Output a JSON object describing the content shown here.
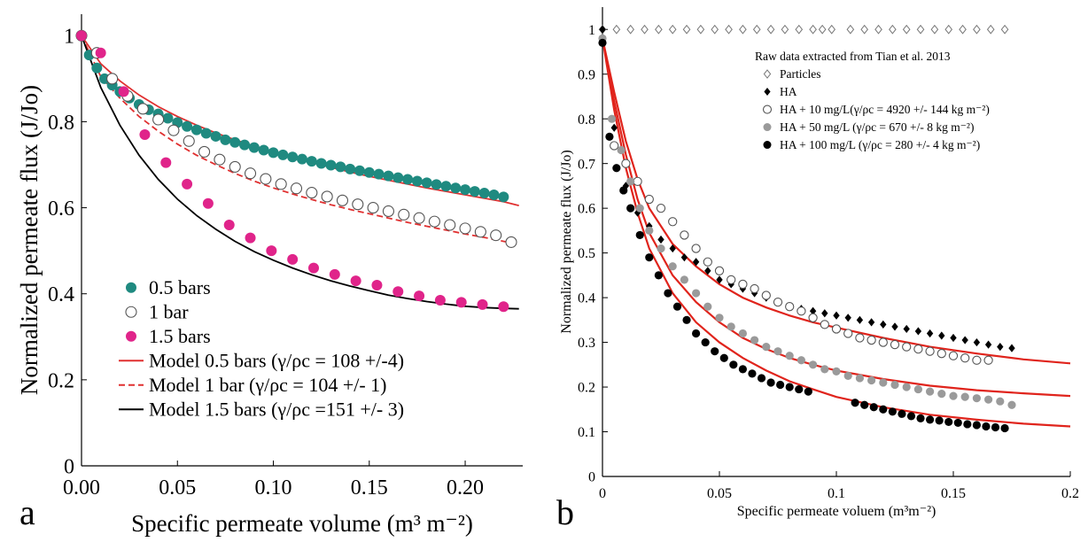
{
  "panel_a_label": "a",
  "panel_b_label": "b",
  "chart_data": [
    {
      "type": "scatter",
      "panel": "a",
      "title": "",
      "xlabel": "Specific permeate volume (m³ m⁻²)",
      "ylabel": "Normalized permeate flux (J/Jo)",
      "xlim": [
        0,
        0.23
      ],
      "ylim": [
        0,
        1.05
      ],
      "xticks": [
        "0.00",
        "0.05",
        "0.10",
        "0.15",
        "0.20"
      ],
      "yticks": [
        "0",
        "0.2",
        "0.4",
        "0.6",
        "0.8",
        "1"
      ],
      "grid": false,
      "legend_position": "bottom-left",
      "series": [
        {
          "name": "0.5 bars",
          "kind": "points",
          "marker": "filled-circle",
          "color": "#1f8a80",
          "x": [
            0.0,
            0.004,
            0.008,
            0.012,
            0.016,
            0.02,
            0.025,
            0.03,
            0.035,
            0.04,
            0.045,
            0.05,
            0.055,
            0.06,
            0.065,
            0.07,
            0.075,
            0.08,
            0.085,
            0.09,
            0.095,
            0.1,
            0.105,
            0.11,
            0.115,
            0.12,
            0.125,
            0.13,
            0.135,
            0.14,
            0.145,
            0.15,
            0.155,
            0.16,
            0.165,
            0.17,
            0.175,
            0.18,
            0.185,
            0.19,
            0.195,
            0.2,
            0.205,
            0.21,
            0.215,
            0.22
          ],
          "y": [
            1.0,
            0.955,
            0.925,
            0.9,
            0.885,
            0.87,
            0.855,
            0.84,
            0.828,
            0.818,
            0.808,
            0.798,
            0.789,
            0.781,
            0.773,
            0.766,
            0.758,
            0.752,
            0.746,
            0.74,
            0.734,
            0.728,
            0.723,
            0.718,
            0.713,
            0.708,
            0.703,
            0.699,
            0.695,
            0.69,
            0.686,
            0.682,
            0.678,
            0.674,
            0.67,
            0.666,
            0.662,
            0.658,
            0.654,
            0.65,
            0.646,
            0.642,
            0.638,
            0.634,
            0.63,
            0.625
          ]
        },
        {
          "name": "1 bar",
          "kind": "points",
          "marker": "open-circle",
          "color": "#555555",
          "x": [
            0.0,
            0.008,
            0.016,
            0.024,
            0.032,
            0.04,
            0.048,
            0.056,
            0.064,
            0.072,
            0.08,
            0.088,
            0.096,
            0.104,
            0.112,
            0.12,
            0.128,
            0.136,
            0.144,
            0.152,
            0.16,
            0.168,
            0.176,
            0.184,
            0.192,
            0.2,
            0.208,
            0.216,
            0.224
          ],
          "y": [
            1.0,
            0.96,
            0.9,
            0.86,
            0.83,
            0.805,
            0.78,
            0.755,
            0.73,
            0.712,
            0.695,
            0.68,
            0.667,
            0.655,
            0.645,
            0.635,
            0.626,
            0.617,
            0.608,
            0.6,
            0.592,
            0.584,
            0.576,
            0.568,
            0.56,
            0.552,
            0.544,
            0.536,
            0.52
          ]
        },
        {
          "name": "1.5 bars",
          "kind": "points",
          "marker": "filled-circle",
          "color": "#e0248a",
          "x": [
            0.0,
            0.01,
            0.022,
            0.033,
            0.044,
            0.055,
            0.066,
            0.077,
            0.088,
            0.099,
            0.11,
            0.121,
            0.132,
            0.143,
            0.154,
            0.165,
            0.176,
            0.187,
            0.198,
            0.209,
            0.22
          ],
          "y": [
            1.0,
            0.96,
            0.87,
            0.77,
            0.705,
            0.655,
            0.61,
            0.56,
            0.53,
            0.5,
            0.48,
            0.46,
            0.445,
            0.43,
            0.42,
            0.405,
            0.395,
            0.385,
            0.38,
            0.375,
            0.37
          ]
        },
        {
          "name": "Model 0.5 bars (γ/ρc = 108 +/-4)",
          "kind": "line",
          "style": "solid",
          "color": "#e03030",
          "x": [
            0.0,
            0.01,
            0.02,
            0.03,
            0.04,
            0.05,
            0.06,
            0.07,
            0.08,
            0.09,
            0.1,
            0.11,
            0.12,
            0.13,
            0.14,
            0.15,
            0.16,
            0.17,
            0.18,
            0.19,
            0.2,
            0.21,
            0.22,
            0.228
          ],
          "y": [
            1.0,
            0.935,
            0.895,
            0.862,
            0.835,
            0.812,
            0.792,
            0.774,
            0.758,
            0.743,
            0.73,
            0.717,
            0.705,
            0.694,
            0.683,
            0.673,
            0.664,
            0.655,
            0.646,
            0.638,
            0.63,
            0.622,
            0.614,
            0.605
          ]
        },
        {
          "name": "Model 1 bar (γ/ρc = 104 +/- 1)",
          "kind": "line",
          "style": "dashed",
          "color": "#e03030",
          "x": [
            0.0,
            0.01,
            0.02,
            0.03,
            0.04,
            0.05,
            0.06,
            0.07,
            0.08,
            0.09,
            0.1,
            0.11,
            0.12,
            0.13,
            0.14,
            0.15,
            0.16,
            0.17,
            0.18,
            0.19,
            0.2,
            0.21,
            0.22,
            0.228
          ],
          "y": [
            1.0,
            0.905,
            0.855,
            0.812,
            0.778,
            0.748,
            0.722,
            0.7,
            0.68,
            0.662,
            0.646,
            0.632,
            0.619,
            0.607,
            0.596,
            0.586,
            0.576,
            0.566,
            0.557,
            0.548,
            0.539,
            0.531,
            0.522,
            0.515
          ]
        },
        {
          "name": "Model 1.5 bars (γ/ρc =151 +/- 3)",
          "kind": "line",
          "style": "solid",
          "color": "#000000",
          "x": [
            0.0,
            0.01,
            0.02,
            0.03,
            0.04,
            0.05,
            0.06,
            0.07,
            0.08,
            0.09,
            0.1,
            0.11,
            0.12,
            0.13,
            0.14,
            0.15,
            0.16,
            0.17,
            0.18,
            0.19,
            0.2,
            0.21,
            0.22,
            0.228
          ],
          "y": [
            1.0,
            0.88,
            0.792,
            0.722,
            0.666,
            0.62,
            0.582,
            0.55,
            0.522,
            0.498,
            0.478,
            0.46,
            0.444,
            0.43,
            0.418,
            0.407,
            0.397,
            0.389,
            0.382,
            0.376,
            0.371,
            0.368,
            0.366,
            0.365
          ]
        }
      ]
    },
    {
      "type": "scatter",
      "panel": "b",
      "title": "",
      "xlabel": "Specific permeate voluem (m³m⁻²)",
      "ylabel": "Normalized permeate flux (J/Jo)",
      "xlim": [
        0,
        0.2
      ],
      "ylim": [
        0,
        1.05
      ],
      "xticks": [
        "0",
        "0.05",
        "0.1",
        "0.15",
        "0.2"
      ],
      "yticks": [
        "0",
        "0.1",
        "0.2",
        "0.3",
        "0.4",
        "0.5",
        "0.6",
        "0.7",
        "0.8",
        "0.9",
        "1"
      ],
      "grid": false,
      "legend_position": "top-right",
      "legend_title": "Raw data extracted from Tian et al. 2013",
      "series": [
        {
          "name": "Particles",
          "kind": "points",
          "marker": "open-diamond",
          "color": "#777777",
          "x": [
            0.0,
            0.006,
            0.012,
            0.018,
            0.024,
            0.03,
            0.036,
            0.042,
            0.048,
            0.054,
            0.06,
            0.066,
            0.072,
            0.078,
            0.084,
            0.09,
            0.094,
            0.098,
            0.106,
            0.112,
            0.118,
            0.124,
            0.13,
            0.136,
            0.142,
            0.148,
            0.154,
            0.16,
            0.166,
            0.172
          ],
          "y": [
            1,
            1,
            1,
            1,
            1,
            1,
            1,
            1,
            1,
            1,
            1,
            1,
            1,
            1,
            1,
            1,
            1,
            1,
            1,
            1,
            1,
            1,
            1,
            1,
            1,
            1,
            1,
            1,
            1,
            1
          ]
        },
        {
          "name": "HA",
          "kind": "points",
          "marker": "filled-diamond",
          "color": "#000000",
          "x": [
            0.0,
            0.005,
            0.01,
            0.015,
            0.02,
            0.025,
            0.03,
            0.035,
            0.04,
            0.045,
            0.05,
            0.055,
            0.06,
            0.065,
            0.07,
            0.075,
            0.08,
            0.085,
            0.09,
            0.095,
            0.1,
            0.105,
            0.11,
            0.115,
            0.12,
            0.125,
            0.13,
            0.135,
            0.14,
            0.145,
            0.15,
            0.155,
            0.16,
            0.165,
            0.17,
            0.175
          ],
          "y": [
            1.0,
            0.78,
            0.65,
            0.59,
            0.56,
            0.53,
            0.51,
            0.49,
            0.48,
            0.46,
            0.44,
            0.43,
            0.42,
            0.41,
            0.4,
            0.39,
            0.38,
            0.375,
            0.37,
            0.365,
            0.36,
            0.355,
            0.35,
            0.345,
            0.34,
            0.335,
            0.33,
            0.325,
            0.32,
            0.315,
            0.31,
            0.305,
            0.3,
            0.295,
            0.29,
            0.287
          ]
        },
        {
          "name": "HA + 10 mg/L(γ/ρc = 4920 +/- 144 kg m⁻²)",
          "kind": "points",
          "marker": "open-circle",
          "color": "#555555",
          "x": [
            0.005,
            0.01,
            0.015,
            0.02,
            0.025,
            0.03,
            0.035,
            0.04,
            0.045,
            0.05,
            0.055,
            0.06,
            0.065,
            0.07,
            0.075,
            0.08,
            0.085,
            0.09,
            0.095,
            0.1,
            0.105,
            0.11,
            0.115,
            0.12,
            0.125,
            0.13,
            0.135,
            0.14,
            0.145,
            0.15,
            0.155,
            0.16,
            0.165
          ],
          "y": [
            0.74,
            0.7,
            0.66,
            0.62,
            0.6,
            0.57,
            0.54,
            0.51,
            0.48,
            0.46,
            0.44,
            0.43,
            0.42,
            0.405,
            0.39,
            0.38,
            0.37,
            0.355,
            0.34,
            0.33,
            0.32,
            0.31,
            0.305,
            0.3,
            0.295,
            0.29,
            0.285,
            0.28,
            0.275,
            0.27,
            0.265,
            0.26,
            0.26
          ]
        },
        {
          "name": "HA + 50 mg/L (γ/ρc = 670 +/- 8 kg m⁻²)",
          "kind": "points",
          "marker": "filled-circle",
          "color": "#9a9a9a",
          "x": [
            0.0,
            0.004,
            0.008,
            0.012,
            0.016,
            0.02,
            0.025,
            0.03,
            0.035,
            0.04,
            0.045,
            0.05,
            0.055,
            0.06,
            0.065,
            0.07,
            0.075,
            0.08,
            0.085,
            0.09,
            0.095,
            0.1,
            0.105,
            0.11,
            0.115,
            0.12,
            0.125,
            0.13,
            0.135,
            0.14,
            0.145,
            0.15,
            0.155,
            0.16,
            0.165,
            0.17,
            0.175
          ],
          "y": [
            0.98,
            0.8,
            0.73,
            0.66,
            0.6,
            0.55,
            0.51,
            0.47,
            0.44,
            0.41,
            0.38,
            0.355,
            0.335,
            0.32,
            0.305,
            0.29,
            0.28,
            0.27,
            0.26,
            0.25,
            0.24,
            0.235,
            0.225,
            0.22,
            0.215,
            0.21,
            0.205,
            0.2,
            0.195,
            0.19,
            0.185,
            0.18,
            0.178,
            0.175,
            0.172,
            0.168,
            0.16
          ]
        },
        {
          "name": "HA + 100 mg/L (γ/ρc = 280 +/- 4 kg m⁻²)",
          "kind": "points",
          "marker": "filled-circle",
          "color": "#000000",
          "x": [
            0.0,
            0.003,
            0.006,
            0.009,
            0.012,
            0.016,
            0.02,
            0.024,
            0.028,
            0.032,
            0.036,
            0.04,
            0.044,
            0.048,
            0.052,
            0.056,
            0.06,
            0.064,
            0.068,
            0.072,
            0.076,
            0.08,
            0.084,
            0.088,
            0.108,
            0.112,
            0.116,
            0.12,
            0.124,
            0.128,
            0.132,
            0.136,
            0.14,
            0.144,
            0.148,
            0.152,
            0.156,
            0.16,
            0.164,
            0.168,
            0.172
          ],
          "y": [
            0.97,
            0.76,
            0.69,
            0.64,
            0.6,
            0.54,
            0.49,
            0.45,
            0.41,
            0.38,
            0.35,
            0.32,
            0.3,
            0.28,
            0.265,
            0.25,
            0.24,
            0.23,
            0.22,
            0.21,
            0.205,
            0.2,
            0.195,
            0.19,
            0.165,
            0.16,
            0.155,
            0.15,
            0.145,
            0.14,
            0.135,
            0.13,
            0.127,
            0.125,
            0.122,
            0.12,
            0.117,
            0.115,
            0.112,
            0.11,
            0.108
          ]
        },
        {
          "kind": "line",
          "style": "solid",
          "color": "#e0241c",
          "x": [
            0.0,
            0.005,
            0.01,
            0.015,
            0.02,
            0.03,
            0.04,
            0.05,
            0.06,
            0.07,
            0.08,
            0.09,
            0.1,
            0.12,
            0.14,
            0.16,
            0.18,
            0.2
          ],
          "y": [
            0.98,
            0.86,
            0.75,
            0.665,
            0.6,
            0.52,
            0.47,
            0.43,
            0.4,
            0.378,
            0.36,
            0.345,
            0.333,
            0.31,
            0.29,
            0.275,
            0.262,
            0.253
          ]
        },
        {
          "kind": "line",
          "style": "solid",
          "color": "#e0241c",
          "x": [
            0.0,
            0.005,
            0.01,
            0.015,
            0.02,
            0.03,
            0.04,
            0.05,
            0.06,
            0.07,
            0.08,
            0.09,
            0.1,
            0.12,
            0.14,
            0.16,
            0.18,
            0.2
          ],
          "y": [
            0.98,
            0.84,
            0.72,
            0.62,
            0.545,
            0.45,
            0.39,
            0.345,
            0.31,
            0.285,
            0.265,
            0.25,
            0.237,
            0.218,
            0.203,
            0.193,
            0.186,
            0.18
          ]
        },
        {
          "kind": "line",
          "style": "solid",
          "color": "#e0241c",
          "x": [
            0.0,
            0.005,
            0.01,
            0.015,
            0.02,
            0.03,
            0.04,
            0.05,
            0.06,
            0.07,
            0.08,
            0.09,
            0.1,
            0.12,
            0.14,
            0.16,
            0.18,
            0.2
          ],
          "y": [
            0.98,
            0.82,
            0.69,
            0.59,
            0.51,
            0.41,
            0.345,
            0.3,
            0.265,
            0.237,
            0.213,
            0.195,
            0.178,
            0.155,
            0.138,
            0.127,
            0.118,
            0.112
          ]
        }
      ]
    }
  ]
}
